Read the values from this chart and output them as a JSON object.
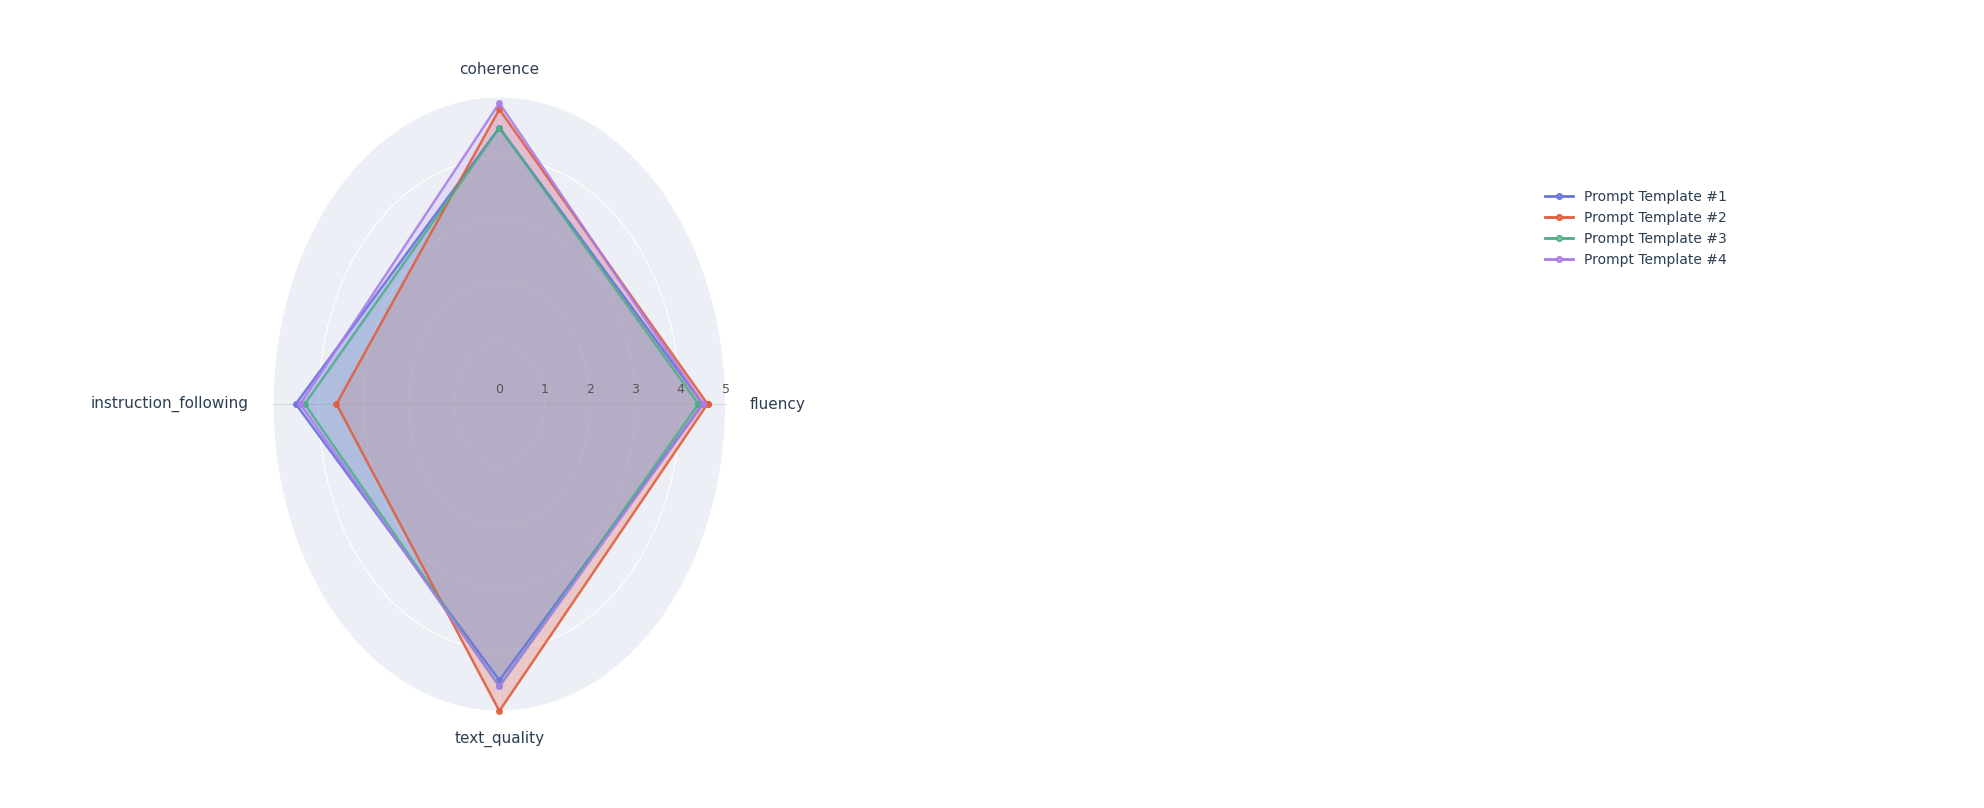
{
  "categories": [
    "fluency",
    "coherence",
    "instruction_following",
    "text_quality"
  ],
  "n_categories": 4,
  "templates": [
    {
      "label": "Prompt Template #1",
      "values": [
        4.5,
        4.5,
        4.5,
        4.5
      ],
      "color": "#6b74e0",
      "fill_color": "#7b83e8",
      "fill_alpha": 0.35,
      "line_alpha": 0.9,
      "linewidth": 1.8
    },
    {
      "label": "Prompt Template #2",
      "values": [
        4.6,
        4.8,
        3.6,
        5.0
      ],
      "color": "#e05c3a",
      "fill_color": "#e87060",
      "fill_alpha": 0.3,
      "line_alpha": 0.85,
      "linewidth": 1.8
    },
    {
      "label": "Prompt Template #3",
      "values": [
        4.4,
        4.5,
        4.3,
        4.6
      ],
      "color": "#4caf85",
      "fill_color": "#6ec9a3",
      "fill_alpha": 0.25,
      "line_alpha": 0.85,
      "linewidth": 1.8
    },
    {
      "label": "Prompt Template #4",
      "values": [
        4.5,
        4.9,
        4.4,
        4.6
      ],
      "color": "#a87de8",
      "fill_color": "#b894ec",
      "fill_alpha": 0.2,
      "line_alpha": 0.85,
      "linewidth": 1.8
    }
  ],
  "r_max": 5,
  "r_ticks": [
    1,
    2,
    3,
    4,
    5
  ],
  "r_tick_labels": [
    "1",
    "2",
    "3",
    "4",
    "5"
  ],
  "background_circle_color": "#dde3ef",
  "background_circle_alpha": 0.55,
  "grid_color": "#ffffff",
  "tick_label_color": "#555555",
  "category_label_color": "#2c3e50",
  "category_label_fontsize": 11,
  "tick_fontsize": 9,
  "legend_fontsize": 10,
  "legend_text_color": "#2c3e50",
  "figsize": [
    19.84,
    8.08
  ],
  "dpi": 100,
  "fig_bg": "#ffffff",
  "marker": "o",
  "marker_size": 4
}
